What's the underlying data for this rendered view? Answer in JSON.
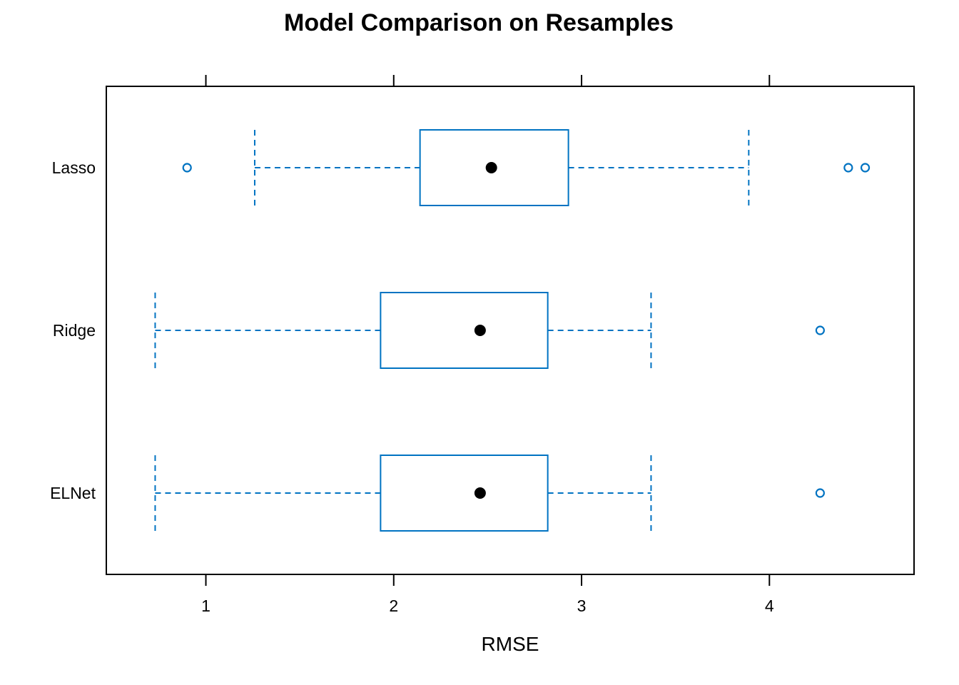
{
  "chart_data": {
    "type": "boxplot",
    "orientation": "horizontal",
    "title": "Model Comparison on Resamples",
    "xlabel": "RMSE",
    "ylabel": "",
    "xlim": [
      0.47,
      4.77
    ],
    "x_ticks": [
      "1",
      "2",
      "3",
      "4"
    ],
    "x_tick_values": [
      1,
      2,
      3,
      4
    ],
    "grid": false,
    "box_color": "#0073C2",
    "median_color": "#000000",
    "categories": [
      "ELNet",
      "Ridge",
      "Lasso"
    ],
    "series": [
      {
        "category": "ELNet",
        "whisker_low": 0.73,
        "q1": 1.93,
        "median": 2.46,
        "q3": 2.82,
        "whisker_high": 3.37,
        "outliers": [
          4.27
        ]
      },
      {
        "category": "Ridge",
        "whisker_low": 0.73,
        "q1": 1.93,
        "median": 2.46,
        "q3": 2.82,
        "whisker_high": 3.37,
        "outliers": [
          4.27
        ]
      },
      {
        "category": "Lasso",
        "whisker_low": 1.26,
        "q1": 2.14,
        "median": 2.52,
        "q3": 2.93,
        "whisker_high": 3.89,
        "outliers": [
          0.9,
          4.42,
          4.51
        ]
      }
    ]
  }
}
